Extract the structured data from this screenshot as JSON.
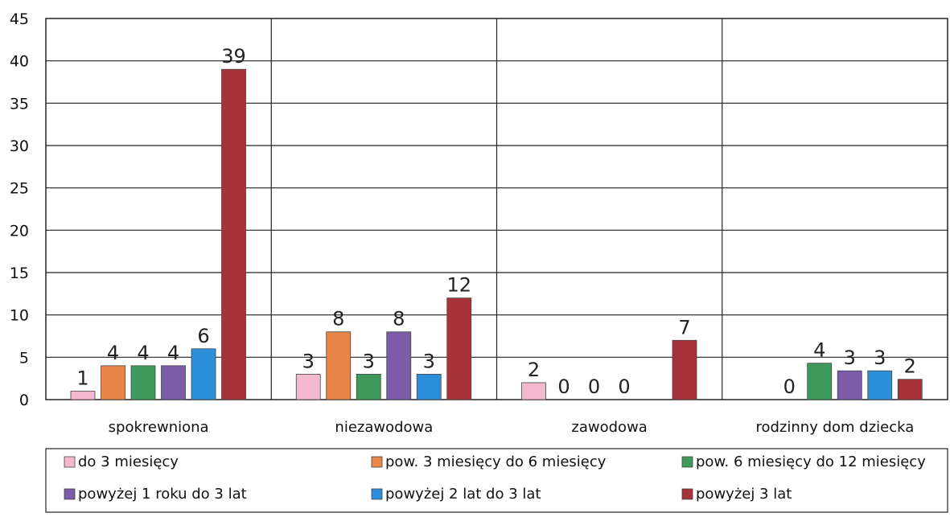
{
  "chart_data": {
    "type": "bar",
    "categories": [
      "spokrewniona",
      "niezawodowa",
      "zawodowa",
      "rodzinny dom dziecka"
    ],
    "ylim": [
      0,
      45
    ],
    "yticks": [
      0,
      5,
      10,
      15,
      20,
      25,
      30,
      35,
      40,
      45
    ],
    "grid": true,
    "legend_position": "bottom",
    "series": [
      {
        "name": "do 3 miesięcy",
        "color": "#f4b8cf",
        "values": [
          1,
          3,
          2,
          null
        ],
        "labels": [
          "1",
          "3",
          "2",
          ""
        ]
      },
      {
        "name": "pow. 3 miesięcy do 6 miesięcy",
        "color": "#e8864a",
        "values": [
          4,
          8,
          0,
          0
        ],
        "labels": [
          "4",
          "8",
          "0",
          "0"
        ]
      },
      {
        "name": "pow. 6 miesięcy do 12 miesięcy",
        "color": "#3e9a5c",
        "values": [
          4,
          3,
          0,
          4.3
        ],
        "labels": [
          "4",
          "3",
          "0",
          "4"
        ]
      },
      {
        "name": "powyżej 1 roku do 3 lat",
        "color": "#7b5ca8",
        "values": [
          4,
          8,
          0,
          3.4
        ],
        "labels": [
          "4",
          "8",
          "0",
          "3"
        ]
      },
      {
        "name": "powyżej 2 lat do 3 lat",
        "color": "#2a8fd8",
        "values": [
          6,
          3,
          null,
          3.4
        ],
        "labels": [
          "6",
          "3",
          "",
          "3"
        ]
      },
      {
        "name": "powyżej 3 lat",
        "color": "#a8323a",
        "values": [
          39,
          12,
          7,
          2.4
        ],
        "labels": [
          "39",
          "12",
          "7",
          "2"
        ]
      }
    ]
  }
}
